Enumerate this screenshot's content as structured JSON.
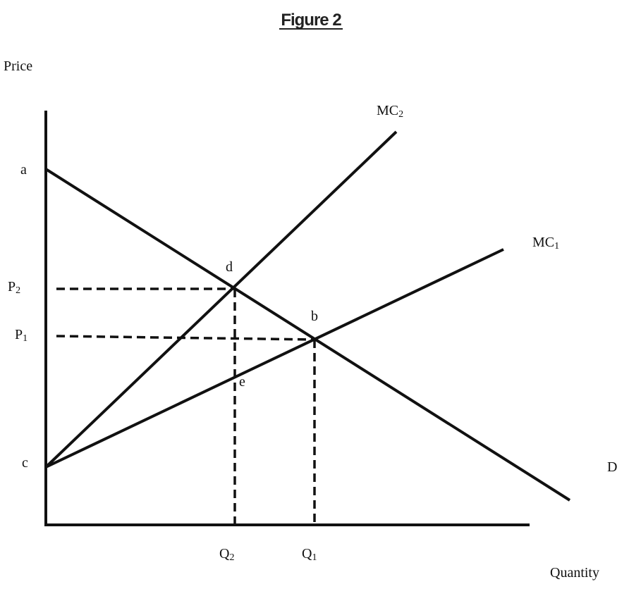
{
  "header": {
    "title": "Figure 2"
  },
  "axes": {
    "y_label": "Price",
    "x_label": "Quantity"
  },
  "labels": {
    "a": "a",
    "b": "b",
    "c": "c",
    "d": "d",
    "e": "e",
    "p2": {
      "text": "P",
      "sub": "2"
    },
    "p1": {
      "text": "P",
      "sub": "1"
    },
    "q2": {
      "text": "Q",
      "sub": "2"
    },
    "q1": {
      "text": "Q",
      "sub": "1"
    },
    "mc2": {
      "text": "MC",
      "sub": "2"
    },
    "mc1": {
      "text": "MC",
      "sub": "1"
    },
    "demand": "D"
  }
}
